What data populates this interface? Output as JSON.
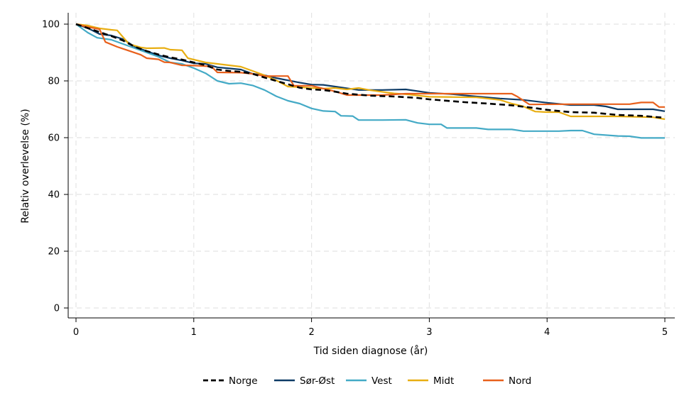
{
  "chart_data": {
    "type": "line",
    "title": "",
    "xlabel": "Tid siden diagnose (år)",
    "ylabel": "Relativ overlevelse (%)",
    "xlim": [
      0,
      5
    ],
    "ylim": [
      0,
      100
    ],
    "xticks": [
      "0",
      "1",
      "2",
      "3",
      "4",
      "5"
    ],
    "yticks": [
      "0",
      "20",
      "40",
      "60",
      "80",
      "100"
    ],
    "grid": true,
    "legend_position": "bottom",
    "series": [
      {
        "name": "Norge",
        "color": "#000000",
        "dash": true,
        "points": [
          [
            0,
            100
          ],
          [
            0.1,
            98.6
          ],
          [
            0.2,
            97.2
          ],
          [
            0.3,
            95.8
          ],
          [
            0.4,
            94.2
          ],
          [
            0.5,
            92
          ],
          [
            0.6,
            90.5
          ],
          [
            0.7,
            89.3
          ],
          [
            0.8,
            88.3
          ],
          [
            0.9,
            87.5
          ],
          [
            1.0,
            86.5
          ],
          [
            1.1,
            85.5
          ],
          [
            1.2,
            84
          ],
          [
            1.3,
            83.5
          ],
          [
            1.4,
            83.2
          ],
          [
            1.5,
            82.5
          ],
          [
            1.6,
            81.2
          ],
          [
            1.7,
            80
          ],
          [
            1.8,
            78.8
          ],
          [
            1.9,
            77.6
          ],
          [
            2.0,
            77
          ],
          [
            2.1,
            76.8
          ],
          [
            2.2,
            76.2
          ],
          [
            2.3,
            75.5
          ],
          [
            2.5,
            74.8
          ],
          [
            2.7,
            74.5
          ],
          [
            2.9,
            74
          ],
          [
            3.0,
            73.5
          ],
          [
            3.3,
            72.5
          ],
          [
            3.5,
            72
          ],
          [
            3.7,
            71.4
          ],
          [
            3.9,
            70.4
          ],
          [
            4.0,
            69.8
          ],
          [
            4.2,
            69
          ],
          [
            4.4,
            68.8
          ],
          [
            4.6,
            68
          ],
          [
            4.8,
            67.7
          ],
          [
            5.0,
            67
          ]
        ]
      },
      {
        "name": "Sør-Øst",
        "color": "#0d3b66",
        "dash": false,
        "points": [
          [
            0,
            100
          ],
          [
            0.1,
            98.6
          ],
          [
            0.2,
            96.5
          ],
          [
            0.3,
            96
          ],
          [
            0.4,
            94.7
          ],
          [
            0.5,
            92
          ],
          [
            0.6,
            90.5
          ],
          [
            0.7,
            89
          ],
          [
            0.8,
            88
          ],
          [
            0.9,
            87.2
          ],
          [
            1.0,
            86.2
          ],
          [
            1.1,
            86
          ],
          [
            1.2,
            84.8
          ],
          [
            1.3,
            84.4
          ],
          [
            1.4,
            84
          ],
          [
            1.5,
            82.5
          ],
          [
            1.6,
            82
          ],
          [
            1.7,
            81
          ],
          [
            1.8,
            80.2
          ],
          [
            1.9,
            79.4
          ],
          [
            2.0,
            78.7
          ],
          [
            2.1,
            78.6
          ],
          [
            2.2,
            78
          ],
          [
            2.4,
            76.8
          ],
          [
            2.6,
            76.8
          ],
          [
            2.8,
            77
          ],
          [
            3.0,
            75.8
          ],
          [
            3.2,
            75.3
          ],
          [
            3.4,
            74.5
          ],
          [
            3.6,
            73.8
          ],
          [
            3.8,
            73.3
          ],
          [
            4.0,
            72.3
          ],
          [
            4.2,
            71.5
          ],
          [
            4.4,
            71.5
          ],
          [
            4.5,
            71
          ],
          [
            4.6,
            70
          ],
          [
            4.9,
            70
          ],
          [
            5.0,
            69.3
          ]
        ]
      },
      {
        "name": "Vest",
        "color": "#44aac6",
        "dash": false,
        "points": [
          [
            0,
            100
          ],
          [
            0.1,
            97
          ],
          [
            0.18,
            95.2
          ],
          [
            0.3,
            94.5
          ],
          [
            0.4,
            93
          ],
          [
            0.5,
            91.5
          ],
          [
            0.6,
            90
          ],
          [
            0.7,
            88.5
          ],
          [
            0.8,
            86.5
          ],
          [
            0.9,
            86
          ],
          [
            1.0,
            84.5
          ],
          [
            1.1,
            82.7
          ],
          [
            1.2,
            80
          ],
          [
            1.3,
            79
          ],
          [
            1.4,
            79.2
          ],
          [
            1.5,
            78.4
          ],
          [
            1.6,
            76.8
          ],
          [
            1.7,
            74.6
          ],
          [
            1.8,
            73
          ],
          [
            1.9,
            72
          ],
          [
            2.0,
            70.3
          ],
          [
            2.1,
            69.4
          ],
          [
            2.2,
            69.2
          ],
          [
            2.25,
            67.7
          ],
          [
            2.35,
            67.6
          ],
          [
            2.4,
            66.2
          ],
          [
            2.6,
            66.2
          ],
          [
            2.8,
            66.3
          ],
          [
            2.9,
            65.2
          ],
          [
            3.0,
            64.7
          ],
          [
            3.1,
            64.7
          ],
          [
            3.15,
            63.4
          ],
          [
            3.4,
            63.4
          ],
          [
            3.5,
            62.9
          ],
          [
            3.7,
            62.9
          ],
          [
            3.8,
            62.3
          ],
          [
            4.1,
            62.3
          ],
          [
            4.2,
            62.5
          ],
          [
            4.3,
            62.5
          ],
          [
            4.4,
            61.2
          ],
          [
            4.6,
            60.6
          ],
          [
            4.7,
            60.5
          ],
          [
            4.8,
            59.9
          ],
          [
            5.0,
            59.9
          ]
        ]
      },
      {
        "name": "Midt",
        "color": "#e8ae12",
        "dash": false,
        "points": [
          [
            0,
            100
          ],
          [
            0.1,
            99.5
          ],
          [
            0.2,
            98.5
          ],
          [
            0.3,
            98
          ],
          [
            0.35,
            97.8
          ],
          [
            0.45,
            93
          ],
          [
            0.55,
            91.8
          ],
          [
            0.6,
            91.5
          ],
          [
            0.75,
            91.6
          ],
          [
            0.8,
            91
          ],
          [
            0.9,
            90.8
          ],
          [
            0.95,
            88
          ],
          [
            1.0,
            87.5
          ],
          [
            1.1,
            86.5
          ],
          [
            1.2,
            86
          ],
          [
            1.3,
            85.5
          ],
          [
            1.4,
            85
          ],
          [
            1.5,
            83.5
          ],
          [
            1.6,
            82
          ],
          [
            1.7,
            80.2
          ],
          [
            1.8,
            78
          ],
          [
            1.9,
            77.8
          ],
          [
            2.0,
            77.5
          ],
          [
            2.1,
            77.3
          ],
          [
            2.2,
            77.5
          ],
          [
            2.3,
            77
          ],
          [
            2.4,
            77.5
          ],
          [
            2.5,
            76.7
          ],
          [
            2.7,
            75.6
          ],
          [
            2.8,
            75.3
          ],
          [
            3.0,
            74.4
          ],
          [
            3.2,
            74.3
          ],
          [
            3.4,
            74.2
          ],
          [
            3.6,
            73.3
          ],
          [
            3.7,
            72
          ],
          [
            3.8,
            71
          ],
          [
            3.9,
            69.2
          ],
          [
            4.0,
            69
          ],
          [
            4.1,
            69
          ],
          [
            4.2,
            67.5
          ],
          [
            4.6,
            67.5
          ],
          [
            4.9,
            67.2
          ],
          [
            5.0,
            66.5
          ]
        ]
      },
      {
        "name": "Nord",
        "color": "#e8601c",
        "dash": false,
        "points": [
          [
            0,
            100
          ],
          [
            0.1,
            99
          ],
          [
            0.2,
            98.2
          ],
          [
            0.25,
            93.7
          ],
          [
            0.35,
            92
          ],
          [
            0.45,
            90.6
          ],
          [
            0.55,
            89.2
          ],
          [
            0.6,
            88
          ],
          [
            0.7,
            87.6
          ],
          [
            0.75,
            86.6
          ],
          [
            0.8,
            86.5
          ],
          [
            0.9,
            85.5
          ],
          [
            1.0,
            85.4
          ],
          [
            1.05,
            85.3
          ],
          [
            1.15,
            85.1
          ],
          [
            1.2,
            83
          ],
          [
            1.4,
            82.9
          ],
          [
            1.5,
            82.5
          ],
          [
            1.6,
            81.7
          ],
          [
            1.8,
            81.7
          ],
          [
            1.85,
            78.3
          ],
          [
            2.0,
            78.3
          ],
          [
            2.2,
            76.3
          ],
          [
            2.3,
            75
          ],
          [
            2.6,
            75
          ],
          [
            2.8,
            75.5
          ],
          [
            3.3,
            75.5
          ],
          [
            3.7,
            75.5
          ],
          [
            3.75,
            74.4
          ],
          [
            3.85,
            71.7
          ],
          [
            4.2,
            71.8
          ],
          [
            4.7,
            71.8
          ],
          [
            4.8,
            72.4
          ],
          [
            4.9,
            72.4
          ],
          [
            4.95,
            70.8
          ],
          [
            5.0,
            70.8
          ]
        ]
      }
    ]
  }
}
